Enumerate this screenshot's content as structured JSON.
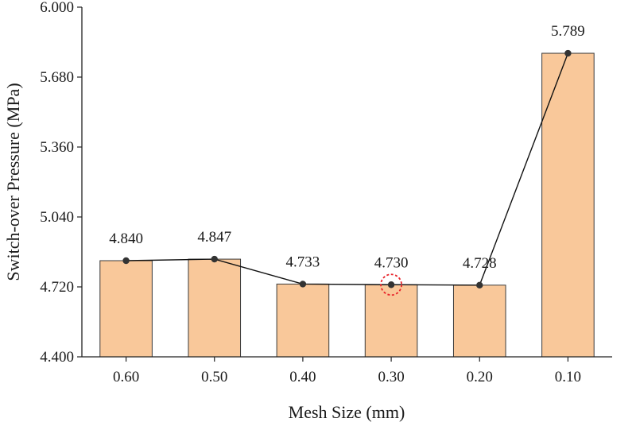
{
  "chart_data": {
    "type": "bar",
    "title": "",
    "xlabel": "Mesh Size (mm)",
    "ylabel": "Switch-over Pressure (MPa)",
    "categories": [
      "0.60",
      "0.50",
      "0.40",
      "0.30",
      "0.20",
      "0.10"
    ],
    "series": [
      {
        "name": "Switch-over Pressure",
        "values": [
          4.84,
          4.847,
          4.733,
          4.73,
          4.728,
          5.789
        ],
        "data_labels": [
          "4.840",
          "4.847",
          "4.733",
          "4.730",
          "4.728",
          "5.789"
        ]
      }
    ],
    "overlay": "line-with-markers",
    "ylim": [
      4.4,
      6.0
    ],
    "yticks": [
      4.4,
      4.72,
      5.04,
      5.36,
      5.68,
      6.0
    ],
    "ytick_labels": [
      "4.400",
      "4.720",
      "5.040",
      "5.360",
      "5.680",
      "6.000"
    ],
    "highlighted_category": "0.30",
    "grid": false,
    "legend": "none"
  },
  "colors": {
    "bar_fill": "#f9c89a",
    "bar_stroke": "#3a3a3a",
    "line": "#111111",
    "marker": "#333333",
    "highlight": "#e8242a"
  }
}
